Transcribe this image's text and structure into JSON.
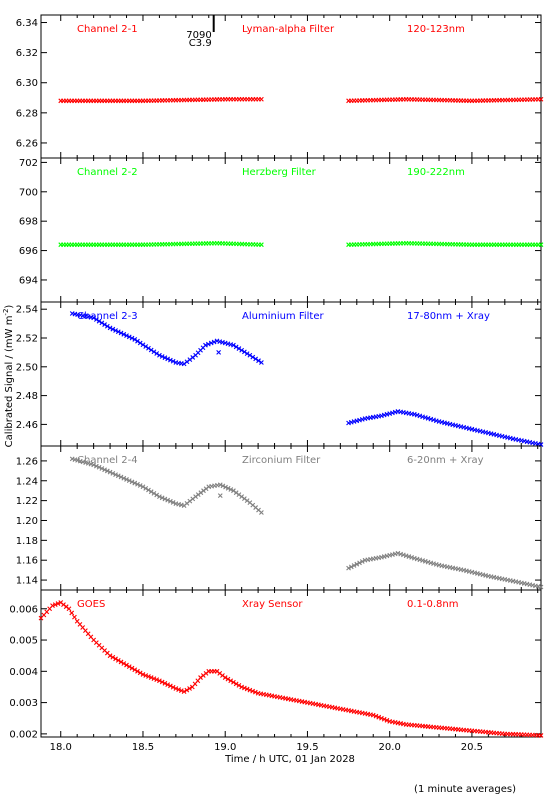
{
  "chart_data": {
    "type": "scatter",
    "x_axis": {
      "label": "Time / h UTC, 01 Jan 2028",
      "range": [
        17.88,
        20.92
      ],
      "ticks": [
        18.0,
        18.5,
        19.0,
        19.5,
        20.0,
        20.5
      ],
      "tick_labels": [
        "18.0",
        "18.5",
        "19.0",
        "19.5",
        "20.0",
        "20.5"
      ]
    },
    "y_label": "Calibrated Signal / (mW m",
    "y_label_sup": "-2",
    "y_label_end": ")",
    "footnote": "(1 minute averages)",
    "flare_marker": {
      "x": 18.93,
      "labels": [
        "7090",
        "C3.9"
      ]
    },
    "panels": [
      {
        "channel": "Channel 2-1",
        "filter": "Lyman-alpha Filter",
        "band": "120-123nm",
        "color": "#ff0000",
        "ylim": [
          6.25,
          6.345
        ],
        "yticks": [
          6.26,
          6.28,
          6.3,
          6.32,
          6.34
        ],
        "ytick_labels": [
          "6.26",
          "6.28",
          "6.30",
          "6.32",
          "6.34"
        ],
        "segments": [
          {
            "x": [
              18.0,
              18.5,
              19.0,
              19.22
            ],
            "y": [
              6.288,
              6.288,
              6.289,
              6.289
            ]
          },
          {
            "x": [
              19.75,
              20.1,
              20.5,
              20.92
            ],
            "y": [
              6.288,
              6.289,
              6.288,
              6.289
            ]
          }
        ]
      },
      {
        "channel": "Channel 2-2",
        "filter": "Herzberg Filter",
        "band": "190-222nm",
        "color": "#00ff00",
        "ylim": [
          692.5,
          702.3
        ],
        "yticks": [
          694,
          696,
          698,
          700,
          702
        ],
        "ytick_labels": [
          "694",
          "696",
          "698",
          "700",
          "702"
        ],
        "segments": [
          {
            "x": [
              18.0,
              18.5,
              18.95,
              19.22
            ],
            "y": [
              696.4,
              696.4,
              696.5,
              696.4
            ]
          },
          {
            "x": [
              19.75,
              20.1,
              20.5,
              20.92
            ],
            "y": [
              696.4,
              696.5,
              696.4,
              696.4
            ]
          }
        ]
      },
      {
        "channel": "Channel 2-3",
        "filter": "Aluminium Filter",
        "band": "17-80nm + Xray",
        "color": "#0000ff",
        "ylim": [
          2.445,
          2.545
        ],
        "yticks": [
          2.46,
          2.48,
          2.5,
          2.52,
          2.54
        ],
        "ytick_labels": [
          "2.46",
          "2.48",
          "2.50",
          "2.52",
          "2.54"
        ],
        "segments": [
          {
            "x": [
              18.07,
              18.2,
              18.3,
              18.45,
              18.6,
              18.7,
              18.75,
              18.82,
              18.88,
              18.95,
              19.05,
              19.15,
              19.22
            ],
            "y": [
              2.537,
              2.534,
              2.527,
              2.519,
              2.508,
              2.503,
              2.502,
              2.508,
              2.515,
              2.518,
              2.515,
              2.508,
              2.503
            ]
          },
          {
            "x": [
              19.75,
              19.85,
              19.95,
              20.05,
              20.15,
              20.3,
              20.45,
              20.6,
              20.75,
              20.92
            ],
            "y": [
              2.461,
              2.464,
              2.466,
              2.469,
              2.467,
              2.462,
              2.458,
              2.454,
              2.45,
              2.446
            ]
          }
        ],
        "outliers": [
          {
            "x": 18.96,
            "y": 2.51
          }
        ]
      },
      {
        "channel": "Channel 2-4",
        "filter": "Zirconium Filter",
        "band": "6-20nm + Xray",
        "color": "#808080",
        "ylim": [
          1.13,
          1.275
        ],
        "yticks": [
          1.14,
          1.16,
          1.18,
          1.2,
          1.22,
          1.24,
          1.26
        ],
        "ytick_labels": [
          "1.14",
          "1.16",
          "1.18",
          "1.20",
          "1.22",
          "1.24",
          "1.26"
        ],
        "segments": [
          {
            "x": [
              18.07,
              18.2,
              18.35,
              18.5,
              18.6,
              18.7,
              18.75,
              18.82,
              18.9,
              18.97,
              19.05,
              19.15,
              19.22
            ],
            "y": [
              1.262,
              1.256,
              1.245,
              1.234,
              1.224,
              1.217,
              1.215,
              1.224,
              1.234,
              1.236,
              1.23,
              1.218,
              1.208
            ]
          },
          {
            "x": [
              19.75,
              19.85,
              19.95,
              20.05,
              20.15,
              20.3,
              20.45,
              20.6,
              20.75,
              20.92
            ],
            "y": [
              1.152,
              1.16,
              1.163,
              1.167,
              1.162,
              1.155,
              1.15,
              1.144,
              1.139,
              1.133
            ]
          }
        ],
        "outliers": [
          {
            "x": 18.97,
            "y": 1.225
          }
        ]
      },
      {
        "channel": "GOES",
        "filter": "Xray Sensor",
        "band": "0.1-0.8nm",
        "color": "#ff0000",
        "ylim": [
          0.0019,
          0.0066
        ],
        "yticks": [
          0.002,
          0.003,
          0.004,
          0.005,
          0.006
        ],
        "ytick_labels": [
          "0.002",
          "0.003",
          "0.004",
          "0.005",
          "0.006"
        ],
        "segments": [
          {
            "x": [
              17.88,
              17.95,
              18.0,
              18.05,
              18.1,
              18.2,
              18.3,
              18.4,
              18.5,
              18.6,
              18.7,
              18.75,
              18.8,
              18.85,
              18.9,
              18.95,
              19.0,
              19.1,
              19.2,
              19.3,
              19.4,
              19.5,
              19.6,
              19.7,
              19.8,
              19.9,
              20.0,
              20.1,
              20.2,
              20.3,
              20.4,
              20.5,
              20.6,
              20.7,
              20.8,
              20.92
            ],
            "y": [
              0.0057,
              0.0061,
              0.0062,
              0.006,
              0.0056,
              0.005,
              0.0045,
              0.0042,
              0.0039,
              0.0037,
              0.00345,
              0.00335,
              0.0035,
              0.0038,
              0.004,
              0.004,
              0.0038,
              0.0035,
              0.0033,
              0.0032,
              0.0031,
              0.003,
              0.0029,
              0.0028,
              0.0027,
              0.0026,
              0.0024,
              0.0023,
              0.00225,
              0.0022,
              0.00215,
              0.0021,
              0.00205,
              0.002,
              0.00198,
              0.00195
            ]
          }
        ]
      }
    ]
  }
}
